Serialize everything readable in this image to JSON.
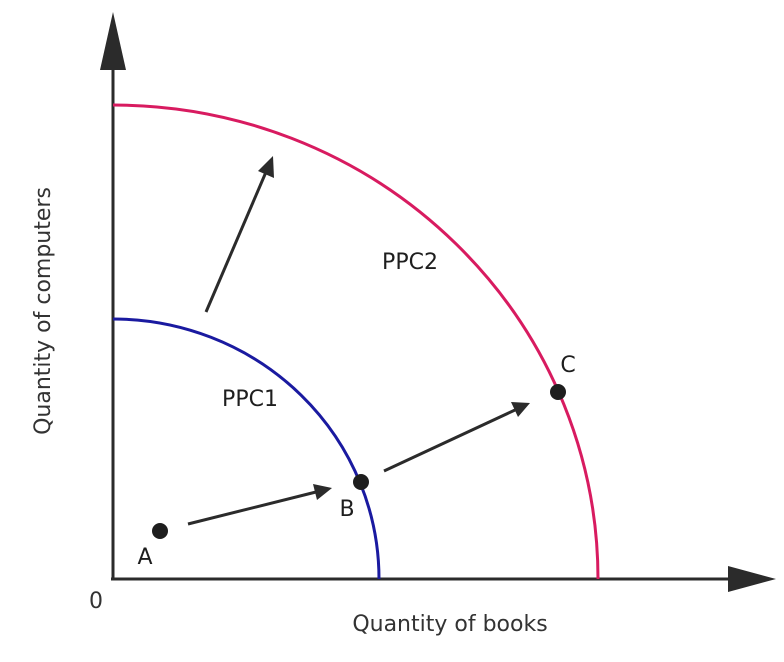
{
  "diagram": {
    "origin_label": "0",
    "x_axis_label": "Quantity of books",
    "y_axis_label": "Quantity of computers",
    "curves": [
      {
        "name": "PPC1",
        "color": "#1a1aa0"
      },
      {
        "name": "PPC2",
        "color": "#d81b60"
      }
    ],
    "points": [
      {
        "label": "A"
      },
      {
        "label": "B"
      },
      {
        "label": "C"
      }
    ],
    "axis_color": "#2b2b2b",
    "arrow_color": "#2b2b2b",
    "point_color": "#1e1e1e"
  }
}
